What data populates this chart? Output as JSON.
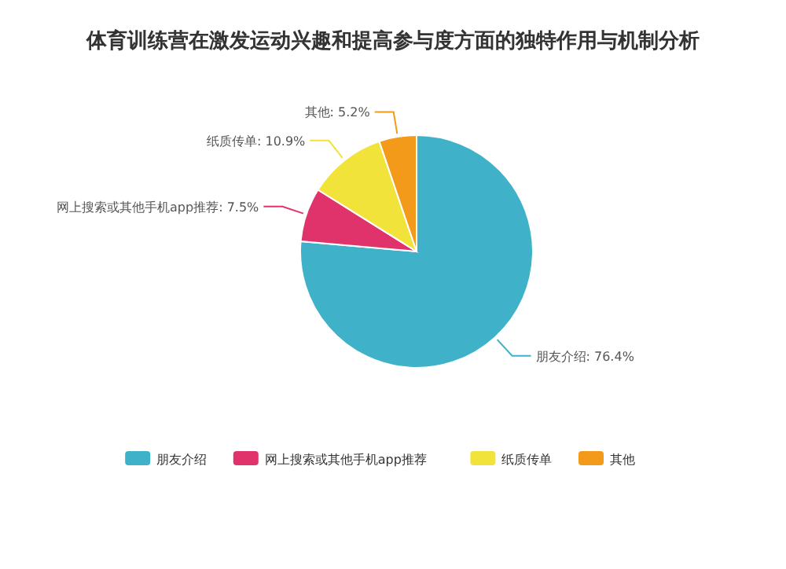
{
  "chart_data": {
    "type": "pie",
    "title": "体育训练营在激发运动兴趣和提高参与度方面的独特作用与机制分析",
    "categories": [
      "朋友介绍",
      "网上搜索或其他手机app推荐",
      "纸质传单",
      "其他"
    ],
    "values": [
      76.4,
      7.5,
      10.9,
      5.2
    ],
    "colors": [
      "#3fb1c9",
      "#e0336b",
      "#f2e33b",
      "#f39a1a"
    ],
    "value_labels": [
      ": 76.4%",
      ": 7.5%",
      ": 10.9%",
      ": 5.2%"
    ],
    "legend": "bottom"
  }
}
